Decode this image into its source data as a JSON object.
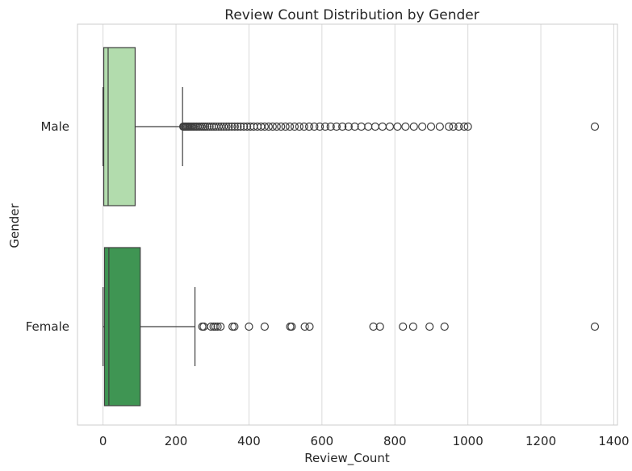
{
  "chart_data": {
    "type": "boxplot",
    "orientation": "horizontal",
    "title": "Review Count Distribution by Gender",
    "xlabel": "Review_Count",
    "ylabel": "Gender",
    "xlim": [
      -70,
      1410
    ],
    "xticks": [
      0,
      200,
      400,
      600,
      800,
      1000,
      1200,
      1400
    ],
    "grid": "vertical",
    "categories": [
      "Male",
      "Female"
    ],
    "series": [
      {
        "category": "Male",
        "color": "#b2dcad",
        "whislo": 0,
        "q1": 2,
        "median": 14,
        "q3": 88,
        "whishi": 218,
        "fliers": [
          220,
          222,
          225,
          228,
          231,
          234,
          237,
          240,
          244,
          248,
          252,
          256,
          260,
          265,
          270,
          275,
          280,
          286,
          292,
          298,
          304,
          310,
          317,
          324,
          331,
          338,
          345,
          353,
          361,
          369,
          377,
          386,
          395,
          404,
          413,
          423,
          433,
          443,
          454,
          465,
          476,
          488,
          500,
          512,
          525,
          538,
          551,
          565,
          579,
          594,
          609,
          624,
          640,
          656,
          673,
          690,
          708,
          727,
          746,
          766,
          786,
          807,
          829,
          852,
          875,
          899,
          923,
          948,
          960,
          975,
          990,
          1000,
          1348
        ]
      },
      {
        "category": "Female",
        "color": "#3f9553",
        "whislo": 0,
        "q1": 4,
        "median": 16,
        "q3": 102,
        "whishi": 252,
        "fliers": [
          272,
          276,
          296,
          303,
          308,
          314,
          322,
          355,
          360,
          400,
          443,
          513,
          517,
          553,
          566,
          741,
          759,
          822,
          850,
          895,
          936,
          1348
        ]
      }
    ]
  }
}
